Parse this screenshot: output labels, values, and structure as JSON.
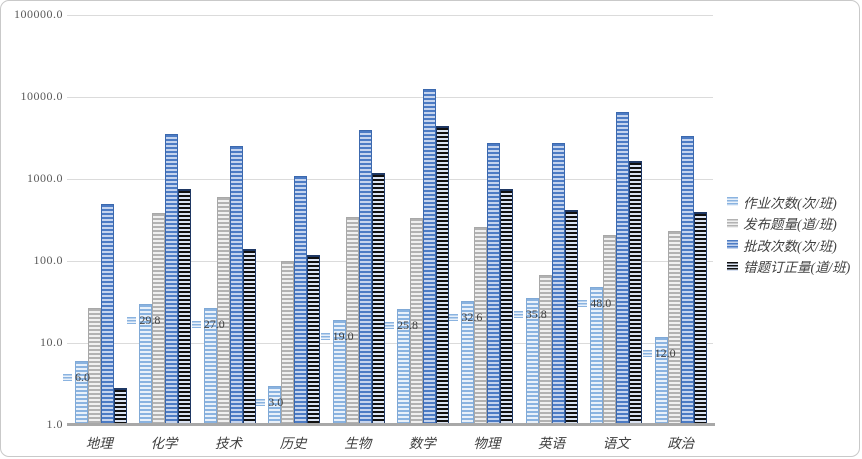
{
  "chart_data": {
    "type": "bar",
    "scale": "log",
    "title": "",
    "xlabel": "",
    "ylabel": "",
    "ylim": [
      1,
      100000
    ],
    "grid": true,
    "legend_position": "right",
    "y_ticks": [
      "100000.0",
      "10000.0",
      "1000.0",
      "100.0",
      "10.0",
      "1.0"
    ],
    "categories": [
      "地理",
      "化学",
      "技术",
      "历史",
      "生物",
      "数学",
      "物理",
      "英语",
      "语文",
      "政治"
    ],
    "series": [
      {
        "name": "作业次数(次/班)",
        "values": [
          6.0,
          29.8,
          27.0,
          3.0,
          19.0,
          25.8,
          32.6,
          35.8,
          48.0,
          12.0
        ],
        "data_labels": [
          "6.0",
          "29.8",
          "27.0",
          "3.0",
          "19.0",
          "25.8",
          "32.6",
          "35.8",
          "48.0",
          "12.0"
        ],
        "fg": "#8AB3E0",
        "bg": "#E9F1FA",
        "border": "#80A9D6"
      },
      {
        "name": "发布题量(道/班)",
        "values": [
          27,
          380,
          600,
          100,
          345,
          335,
          260,
          68,
          205,
          235
        ],
        "fg": "#B2B2B2",
        "bg": "#F0F0F0",
        "border": "#A8A8A8"
      },
      {
        "name": "批改次数(次/班)",
        "values": [
          500,
          3500,
          2500,
          1080,
          4000,
          12500,
          2750,
          2750,
          6500,
          3300
        ],
        "fg": "#4C7BC4",
        "bg": "#C5D4EE",
        "border": "#3C69AE"
      },
      {
        "name": "错题订正量(道/班)",
        "values": [
          2.8,
          750,
          140,
          120,
          1200,
          4400,
          750,
          420,
          1650,
          400
        ],
        "fg": "#101010",
        "bg": "#DAE3F3",
        "border": "#1F3864"
      }
    ]
  }
}
